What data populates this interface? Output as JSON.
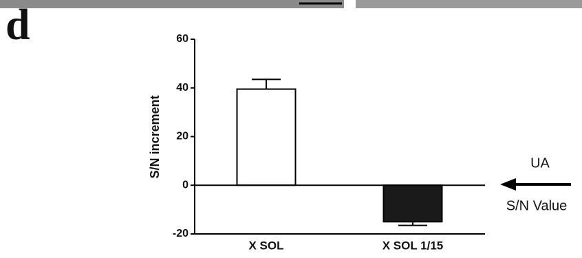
{
  "panel_label": "d",
  "chart_data": {
    "type": "bar",
    "ylabel": "S/N increment",
    "categories": [
      "X SOL",
      "X SOL 1/15"
    ],
    "series": [
      {
        "values": [
          39.5,
          -15
        ],
        "errors": [
          4,
          1.5
        ],
        "colors": [
          "#ffffff",
          "#1a1a1a"
        ]
      }
    ],
    "ylim": [
      -20,
      60
    ],
    "yticks": [
      -20,
      0,
      20,
      40,
      60
    ],
    "annotations": [
      "UA",
      "S/N Value"
    ]
  }
}
